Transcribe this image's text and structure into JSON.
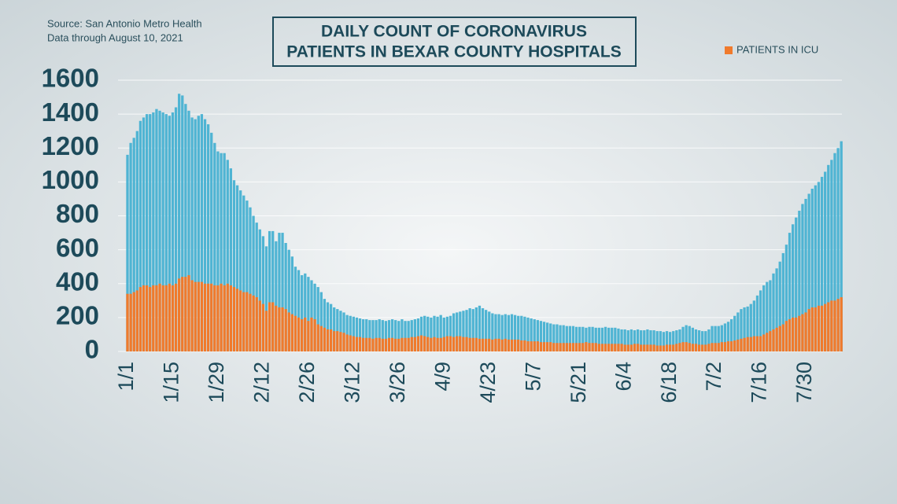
{
  "chart_data": {
    "type": "bar",
    "title_lines": [
      "DAILY COUNT OF CORONAVIRUS",
      "PATIENTS IN BEXAR COUNTY HOSPITALS"
    ],
    "source": "Source: San Antonio Metro Health",
    "note": "Data through August 10, 2021",
    "categories": [
      "1/1",
      null,
      null,
      null,
      null,
      null,
      null,
      null,
      null,
      null,
      null,
      null,
      null,
      null,
      "1/15",
      null,
      null,
      null,
      null,
      null,
      null,
      null,
      null,
      null,
      null,
      null,
      null,
      null,
      "1/29",
      null,
      null,
      null,
      null,
      null,
      null,
      null,
      null,
      null,
      null,
      null,
      null,
      null,
      "2/12",
      null,
      null,
      null,
      null,
      null,
      null,
      null,
      null,
      null,
      null,
      null,
      null,
      null,
      "2/26",
      null,
      null,
      null,
      null,
      null,
      null,
      null,
      null,
      null,
      null,
      null,
      null,
      null,
      "3/12",
      null,
      null,
      null,
      null,
      null,
      null,
      null,
      null,
      null,
      null,
      null,
      null,
      null,
      "3/26",
      null,
      null,
      null,
      null,
      null,
      null,
      null,
      null,
      null,
      null,
      null,
      null,
      null,
      "4/9",
      null,
      null,
      null,
      null,
      null,
      null,
      null,
      null,
      null,
      null,
      null,
      null,
      null,
      "4/23",
      null,
      null,
      null,
      null,
      null,
      null,
      null,
      null,
      null,
      null,
      null,
      null,
      null,
      "5/7",
      null,
      null,
      null,
      null,
      null,
      null,
      null,
      null,
      null,
      null,
      null,
      null,
      null,
      "5/21",
      null,
      null,
      null,
      null,
      null,
      null,
      null,
      null,
      null,
      null,
      null,
      null,
      null,
      "6/4",
      null,
      null,
      null,
      null,
      null,
      null,
      null,
      null,
      null,
      null,
      null,
      null,
      null,
      "6/18",
      null,
      null,
      null,
      null,
      null,
      null,
      null,
      null,
      null,
      null,
      null,
      null,
      null,
      "7/2",
      null,
      null,
      null,
      null,
      null,
      null,
      null,
      null,
      null,
      null,
      null,
      null,
      null,
      "7/16",
      null,
      null,
      null,
      null,
      null,
      null,
      null,
      null,
      null,
      null,
      null,
      null,
      null,
      "7/30",
      null,
      null,
      null,
      null,
      null,
      null,
      null,
      null,
      null,
      null,
      null
    ],
    "series": [
      {
        "color": "#4fb4d3",
        "values": [
          1160,
          1230,
          1260,
          1300,
          1360,
          1380,
          1400,
          1400,
          1410,
          1430,
          1420,
          1410,
          1400,
          1390,
          1410,
          1440,
          1520,
          1510,
          1460,
          1420,
          1380,
          1370,
          1390,
          1400,
          1370,
          1340,
          1290,
          1230,
          1180,
          1170,
          1170,
          1130,
          1080,
          1010,
          980,
          950,
          920,
          890,
          850,
          800,
          760,
          720,
          680,
          620,
          710,
          710,
          650,
          700,
          700,
          640,
          600,
          560,
          500,
          480,
          450,
          460,
          440,
          420,
          400,
          380,
          350,
          310,
          290,
          280,
          260,
          250,
          240,
          230,
          215,
          210,
          205,
          200,
          195,
          190,
          190,
          185,
          185,
          185,
          190,
          185,
          180,
          185,
          190,
          185,
          180,
          190,
          180,
          180,
          185,
          190,
          195,
          205,
          210,
          205,
          200,
          210,
          205,
          215,
          200,
          205,
          210,
          225,
          230,
          235,
          240,
          245,
          255,
          250,
          260,
          270,
          255,
          245,
          235,
          225,
          220,
          220,
          215,
          220,
          215,
          220,
          215,
          210,
          210,
          205,
          200,
          195,
          190,
          185,
          180,
          175,
          170,
          165,
          160,
          160,
          155,
          155,
          150,
          150,
          150,
          145,
          145,
          145,
          140,
          145,
          145,
          140,
          140,
          140,
          145,
          140,
          140,
          140,
          135,
          130,
          130,
          125,
          130,
          125,
          130,
          125,
          125,
          130,
          125,
          125,
          120,
          120,
          115,
          120,
          115,
          120,
          125,
          130,
          145,
          155,
          150,
          140,
          130,
          125,
          120,
          120,
          130,
          150,
          150,
          150,
          155,
          165,
          175,
          190,
          210,
          230,
          250,
          260,
          265,
          280,
          300,
          330,
          360,
          390,
          410,
          420,
          460,
          490,
          530,
          580,
          630,
          700,
          750,
          790,
          830,
          870,
          900,
          930,
          960,
          980,
          1000,
          1030,
          1060,
          1100,
          1130,
          1170,
          1200,
          1240
        ]
      },
      {
        "name": "PATIENTS IN ICU",
        "color": "#f07a2c",
        "values": [
          340,
          340,
          350,
          360,
          380,
          390,
          390,
          380,
          390,
          390,
          400,
          390,
          390,
          400,
          390,
          400,
          430,
          440,
          440,
          450,
          420,
          410,
          410,
          410,
          400,
          400,
          400,
          390,
          390,
          400,
          390,
          400,
          390,
          380,
          370,
          360,
          350,
          350,
          340,
          330,
          320,
          300,
          280,
          240,
          290,
          290,
          270,
          260,
          260,
          250,
          230,
          220,
          210,
          200,
          190,
          200,
          180,
          200,
          190,
          160,
          150,
          140,
          130,
          130,
          120,
          120,
          115,
          110,
          100,
          95,
          90,
          85,
          85,
          80,
          80,
          80,
          75,
          80,
          80,
          75,
          75,
          80,
          80,
          75,
          75,
          80,
          80,
          80,
          85,
          85,
          90,
          95,
          90,
          85,
          80,
          85,
          80,
          80,
          85,
          90,
          90,
          85,
          90,
          90,
          85,
          85,
          80,
          80,
          80,
          75,
          75,
          75,
          75,
          70,
          75,
          75,
          70,
          75,
          70,
          70,
          70,
          70,
          65,
          65,
          60,
          60,
          60,
          60,
          55,
          55,
          55,
          55,
          50,
          50,
          50,
          50,
          50,
          50,
          50,
          50,
          50,
          50,
          55,
          50,
          50,
          50,
          45,
          45,
          45,
          45,
          45,
          45,
          45,
          45,
          40,
          40,
          40,
          45,
          45,
          40,
          40,
          40,
          40,
          40,
          35,
          35,
          35,
          40,
          40,
          40,
          45,
          50,
          55,
          55,
          50,
          45,
          45,
          40,
          40,
          40,
          45,
          50,
          50,
          50,
          55,
          55,
          60,
          60,
          65,
          70,
          75,
          80,
          85,
          85,
          90,
          90,
          90,
          100,
          110,
          120,
          130,
          140,
          150,
          160,
          180,
          190,
          200,
          200,
          210,
          220,
          230,
          250,
          260,
          260,
          270,
          270,
          280,
          290,
          300,
          300,
          310,
          320
        ]
      }
    ],
    "ylim": [
      0,
      1600
    ],
    "yticks": [
      0,
      200,
      400,
      600,
      800,
      1000,
      1200,
      1400,
      1600
    ],
    "grid": true
  }
}
